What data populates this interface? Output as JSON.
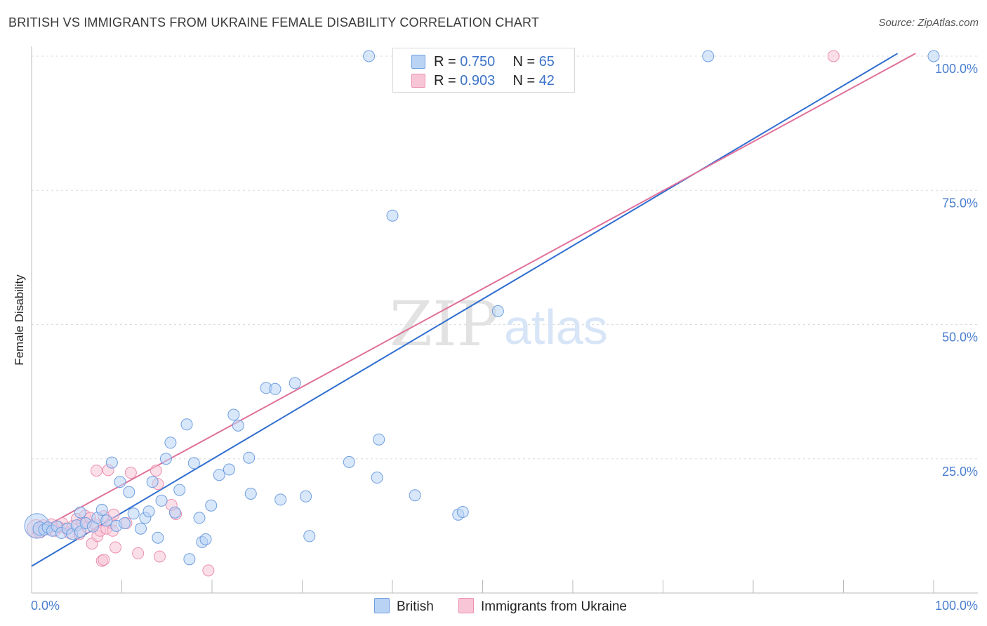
{
  "title": "BRITISH VS IMMIGRANTS FROM UKRAINE FEMALE DISABILITY CORRELATION CHART",
  "source": "Source: ZipAtlas.com",
  "watermark": {
    "part1": "ZIP",
    "part2": "atlas"
  },
  "legend": {
    "british": {
      "r_label": "R = ",
      "r_value": "0.750",
      "n_label": "N = ",
      "n_value": "65"
    },
    "ukraine": {
      "r_label": "R = ",
      "r_value": "0.903",
      "n_label": "N = ",
      "n_value": "42"
    }
  },
  "bottom_legend": {
    "british": "British",
    "ukraine": "Immigrants from Ukraine"
  },
  "colors": {
    "british_fill": "#b9d3f5",
    "british_stroke": "#6f9fe0",
    "british_line": "#2f6ed0",
    "ukraine_fill": "#f8c5d6",
    "ukraine_stroke": "#ec8fb0",
    "ukraine_line": "#e0709a",
    "tick_text": "#4a7fd0",
    "grid": "#dcdcdc"
  },
  "chart_data": {
    "type": "scatter",
    "title": "BRITISH VS IMMIGRANTS FROM UKRAINE FEMALE DISABILITY CORRELATION CHART",
    "xlabel": "",
    "ylabel": "Female Disability",
    "xlim": [
      0,
      100
    ],
    "ylim": [
      0,
      102
    ],
    "y_ticks": [
      25,
      50,
      75,
      100
    ],
    "y_tick_labels": [
      "25.0%",
      "50.0%",
      "75.0%",
      "100.0%"
    ],
    "x_tick_labels": [
      "0.0%",
      "100.0%"
    ],
    "series": [
      {
        "name": "British",
        "r": 0.75,
        "n": 65,
        "trend": {
          "x0": 0,
          "y0": 5.0,
          "x1": 96.0,
          "y1": 100.5
        },
        "points": [
          {
            "x": 0.6,
            "y": 12.5,
            "s": 2.2
          },
          {
            "x": 0.9,
            "y": 12.0,
            "s": 1.2
          },
          {
            "x": 1.4,
            "y": 11.8,
            "s": 1
          },
          {
            "x": 1.8,
            "y": 12.2,
            "s": 1
          },
          {
            "x": 2.3,
            "y": 11.6,
            "s": 1
          },
          {
            "x": 2.8,
            "y": 12.4,
            "s": 1
          },
          {
            "x": 3.3,
            "y": 11.2,
            "s": 1
          },
          {
            "x": 4.0,
            "y": 12.0,
            "s": 1
          },
          {
            "x": 4.5,
            "y": 11.0,
            "s": 1
          },
          {
            "x": 5.0,
            "y": 12.6,
            "s": 1
          },
          {
            "x": 5.4,
            "y": 11.4,
            "s": 1
          },
          {
            "x": 5.4,
            "y": 15.0,
            "s": 1
          },
          {
            "x": 6.0,
            "y": 13.0,
            "s": 1
          },
          {
            "x": 6.8,
            "y": 12.4,
            "s": 1
          },
          {
            "x": 7.3,
            "y": 14.0,
            "s": 1
          },
          {
            "x": 7.8,
            "y": 15.5,
            "s": 1
          },
          {
            "x": 8.3,
            "y": 13.5,
            "s": 1
          },
          {
            "x": 8.9,
            "y": 24.3,
            "s": 1
          },
          {
            "x": 9.4,
            "y": 12.5,
            "s": 1
          },
          {
            "x": 9.8,
            "y": 20.7,
            "s": 1
          },
          {
            "x": 10.3,
            "y": 13.0,
            "s": 1
          },
          {
            "x": 10.8,
            "y": 18.8,
            "s": 1
          },
          {
            "x": 11.3,
            "y": 14.8,
            "s": 1
          },
          {
            "x": 12.1,
            "y": 12.0,
            "s": 1
          },
          {
            "x": 12.6,
            "y": 14.0,
            "s": 1
          },
          {
            "x": 13.0,
            "y": 15.2,
            "s": 1
          },
          {
            "x": 13.4,
            "y": 20.7,
            "s": 1
          },
          {
            "x": 14.0,
            "y": 10.3,
            "s": 1
          },
          {
            "x": 14.4,
            "y": 17.2,
            "s": 1
          },
          {
            "x": 14.9,
            "y": 25.0,
            "s": 1
          },
          {
            "x": 15.4,
            "y": 28.0,
            "s": 1
          },
          {
            "x": 15.9,
            "y": 15.0,
            "s": 1
          },
          {
            "x": 16.4,
            "y": 19.2,
            "s": 1
          },
          {
            "x": 17.2,
            "y": 31.4,
            "s": 1
          },
          {
            "x": 17.5,
            "y": 6.3,
            "s": 1
          },
          {
            "x": 18.0,
            "y": 24.2,
            "s": 1
          },
          {
            "x": 18.6,
            "y": 14.0,
            "s": 1
          },
          {
            "x": 18.9,
            "y": 9.5,
            "s": 1
          },
          {
            "x": 19.3,
            "y": 10.0,
            "s": 1
          },
          {
            "x": 19.9,
            "y": 16.3,
            "s": 1
          },
          {
            "x": 20.8,
            "y": 22.0,
            "s": 1
          },
          {
            "x": 21.9,
            "y": 23.0,
            "s": 1
          },
          {
            "x": 22.4,
            "y": 33.2,
            "s": 1
          },
          {
            "x": 22.9,
            "y": 31.2,
            "s": 1
          },
          {
            "x": 24.1,
            "y": 25.2,
            "s": 1
          },
          {
            "x": 24.3,
            "y": 18.5,
            "s": 1
          },
          {
            "x": 26.0,
            "y": 38.2,
            "s": 1
          },
          {
            "x": 27.0,
            "y": 38.0,
            "s": 1
          },
          {
            "x": 27.6,
            "y": 17.4,
            "s": 1
          },
          {
            "x": 29.2,
            "y": 39.1,
            "s": 1
          },
          {
            "x": 30.4,
            "y": 18.0,
            "s": 1
          },
          {
            "x": 30.8,
            "y": 10.6,
            "s": 1
          },
          {
            "x": 35.2,
            "y": 24.4,
            "s": 1
          },
          {
            "x": 37.4,
            "y": 100.0,
            "s": 1
          },
          {
            "x": 38.3,
            "y": 21.5,
            "s": 1
          },
          {
            "x": 38.5,
            "y": 28.6,
            "s": 1
          },
          {
            "x": 40.0,
            "y": 70.3,
            "s": 1
          },
          {
            "x": 42.5,
            "y": 18.2,
            "s": 1
          },
          {
            "x": 47.3,
            "y": 14.6,
            "s": 1
          },
          {
            "x": 47.8,
            "y": 15.1,
            "s": 1
          },
          {
            "x": 51.7,
            "y": 52.5,
            "s": 1
          },
          {
            "x": 75.0,
            "y": 100.0,
            "s": 1
          },
          {
            "x": 100.0,
            "y": 100.0,
            "s": 1
          }
        ]
      },
      {
        "name": "Immigrants from Ukraine",
        "r": 0.903,
        "n": 42,
        "trend": {
          "x0": 0,
          "y0": 11.0,
          "x1": 98.0,
          "y1": 100.5
        },
        "points": [
          {
            "x": 0.5,
            "y": 12.0,
            "s": 1.6
          },
          {
            "x": 0.9,
            "y": 11.5,
            "s": 1.2
          },
          {
            "x": 1.3,
            "y": 12.6,
            "s": 1
          },
          {
            "x": 1.8,
            "y": 11.9,
            "s": 1
          },
          {
            "x": 2.2,
            "y": 12.8,
            "s": 1
          },
          {
            "x": 2.6,
            "y": 11.6,
            "s": 1
          },
          {
            "x": 3.0,
            "y": 12.3,
            "s": 1
          },
          {
            "x": 3.4,
            "y": 13.0,
            "s": 1
          },
          {
            "x": 3.8,
            "y": 12.0,
            "s": 1
          },
          {
            "x": 4.2,
            "y": 11.2,
            "s": 1
          },
          {
            "x": 4.6,
            "y": 12.5,
            "s": 1
          },
          {
            "x": 5.0,
            "y": 13.8,
            "s": 1
          },
          {
            "x": 5.3,
            "y": 11.0,
            "s": 1
          },
          {
            "x": 5.6,
            "y": 13.0,
            "s": 1
          },
          {
            "x": 5.9,
            "y": 14.4,
            "s": 1
          },
          {
            "x": 6.2,
            "y": 12.2,
            "s": 1
          },
          {
            "x": 6.5,
            "y": 14.0,
            "s": 1
          },
          {
            "x": 6.7,
            "y": 9.2,
            "s": 1
          },
          {
            "x": 7.0,
            "y": 12.8,
            "s": 1
          },
          {
            "x": 7.3,
            "y": 10.6,
            "s": 1
          },
          {
            "x": 7.6,
            "y": 11.6,
            "s": 1
          },
          {
            "x": 8.0,
            "y": 14.3,
            "s": 1
          },
          {
            "x": 8.3,
            "y": 12.0,
            "s": 1
          },
          {
            "x": 8.8,
            "y": 13.0,
            "s": 1
          },
          {
            "x": 9.1,
            "y": 14.6,
            "s": 1
          },
          {
            "x": 7.2,
            "y": 22.8,
            "s": 1
          },
          {
            "x": 8.5,
            "y": 22.9,
            "s": 1
          },
          {
            "x": 9.0,
            "y": 11.6,
            "s": 1
          },
          {
            "x": 9.3,
            "y": 8.5,
            "s": 1
          },
          {
            "x": 7.8,
            "y": 6.0,
            "s": 1
          },
          {
            "x": 8.0,
            "y": 6.2,
            "s": 1
          },
          {
            "x": 10.5,
            "y": 13.0,
            "s": 1
          },
          {
            "x": 11.0,
            "y": 22.4,
            "s": 1
          },
          {
            "x": 11.8,
            "y": 7.4,
            "s": 1
          },
          {
            "x": 13.8,
            "y": 22.8,
            "s": 1
          },
          {
            "x": 14.0,
            "y": 20.3,
            "s": 1
          },
          {
            "x": 14.2,
            "y": 6.8,
            "s": 1
          },
          {
            "x": 15.5,
            "y": 16.4,
            "s": 1
          },
          {
            "x": 16.0,
            "y": 14.7,
            "s": 1
          },
          {
            "x": 19.6,
            "y": 4.2,
            "s": 1
          },
          {
            "x": 88.9,
            "y": 100.0,
            "s": 1
          }
        ]
      }
    ]
  }
}
